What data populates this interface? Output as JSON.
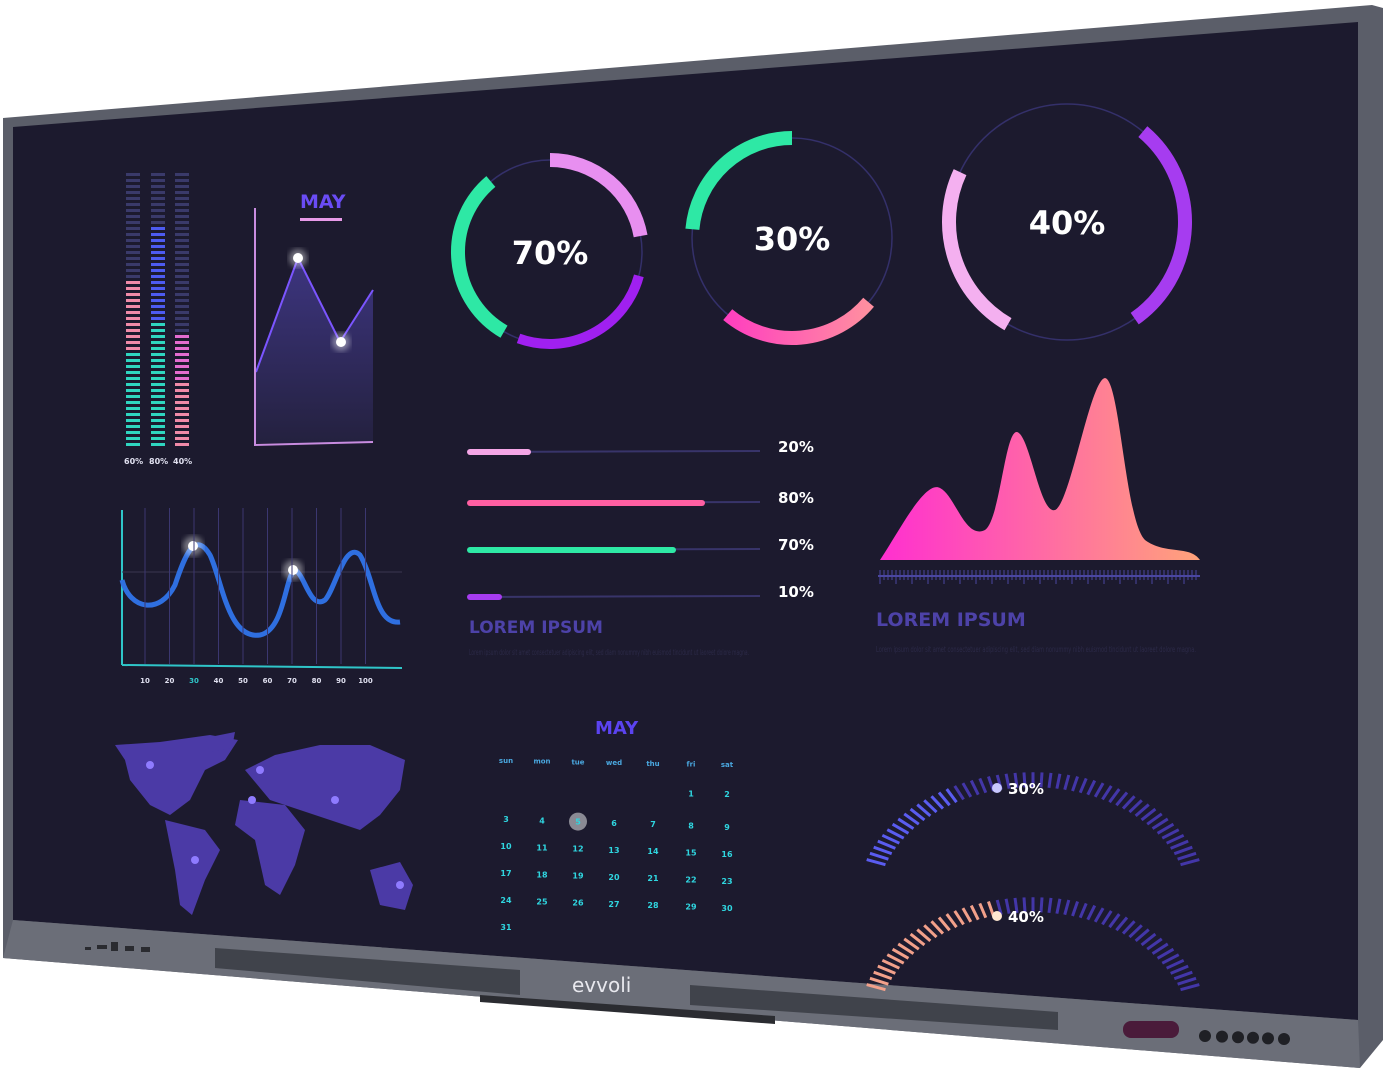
{
  "device": {
    "brand": "evvoli",
    "bezel_color": "#5b5e69",
    "screen_color": "#1c1a2e"
  },
  "level_bars": {
    "labels": [
      "60%",
      "80%",
      "40%"
    ],
    "values": [
      0.6,
      0.8,
      0.4
    ]
  },
  "line_chart": {
    "title": "MAY"
  },
  "donuts": [
    {
      "label": "70%",
      "value": 70
    },
    {
      "label": "30%",
      "value": 30
    },
    {
      "label": "40%",
      "value": 40
    }
  ],
  "progress": [
    {
      "label": "20%",
      "value": 20,
      "color": "#f4a6e6"
    },
    {
      "label": "80%",
      "value": 80,
      "color": "#ff5fa2"
    },
    {
      "label": "70%",
      "value": 70,
      "color": "#2ee8a5"
    },
    {
      "label": "10%",
      "value": 10,
      "color": "#a63cf0"
    }
  ],
  "wave_chart": {
    "x_ticks": [
      "10",
      "20",
      "30",
      "40",
      "50",
      "60",
      "70",
      "80",
      "90",
      "100"
    ],
    "highlight_tick": "30"
  },
  "text_block_1": {
    "heading": "LOREM IPSUM",
    "body": "Lorem ipsum dolor sit amet consectetuer adipiscing elit, sed diam nonummy nibh euismod tincidunt ut laoreet dolore magna."
  },
  "text_block_2": {
    "heading": "LOREM IPSUM",
    "body": "Lorem ipsum dolor sit amet consectetuer adipiscing elit, sed diam nonummy nibh euismod tincidunt ut laoreet dolore magna."
  },
  "calendar": {
    "month": "MAY",
    "weekdays": [
      "sun",
      "mon",
      "tue",
      "wed",
      "thu",
      "fri",
      "sat"
    ],
    "weeks": [
      [
        "",
        "",
        "",
        "",
        "",
        "1",
        "2"
      ],
      [
        "3",
        "4",
        "5",
        "6",
        "7",
        "8",
        "9"
      ],
      [
        "10",
        "11",
        "12",
        "13",
        "14",
        "15",
        "16"
      ],
      [
        "17",
        "18",
        "19",
        "20",
        "21",
        "22",
        "23"
      ],
      [
        "24",
        "25",
        "26",
        "27",
        "28",
        "29",
        "30"
      ],
      [
        "31",
        "",
        "",
        "",
        "",
        "",
        ""
      ]
    ],
    "selected_day": "5"
  },
  "arc_gauges": [
    {
      "label": "30%",
      "value": 30
    },
    {
      "label": "40%",
      "value": 40
    }
  ]
}
